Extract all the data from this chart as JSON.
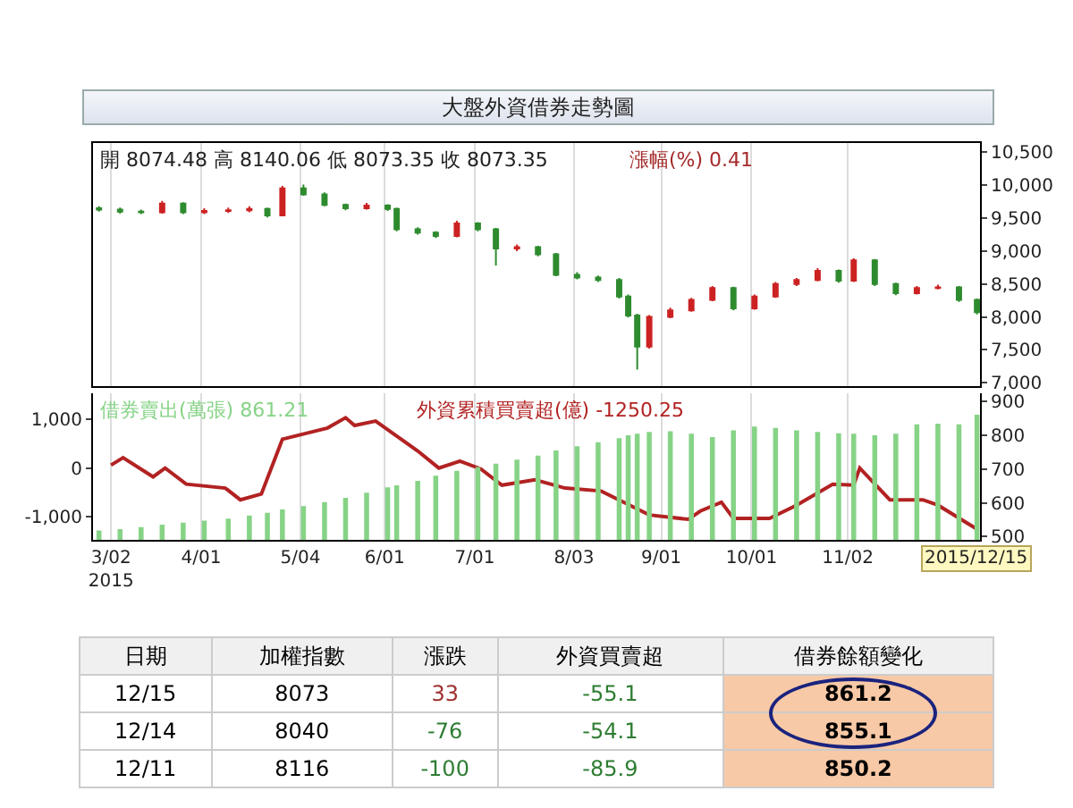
{
  "chart_data": [
    {
      "type": "candlestick",
      "title": "大盤外資借券走勢圖",
      "annotations": [
        "開 8074.48 高 8140.06 低 8073.35 收 8073.35",
        "漲幅(%) 0.41"
      ],
      "x": [
        "2015-02-26",
        "2015-03-05",
        "2015-03-12",
        "2015-03-19",
        "2015-03-26",
        "2015-04-02",
        "2015-04-10",
        "2015-04-17",
        "2015-04-23",
        "2015-04-28",
        "2015-05-05",
        "2015-05-12",
        "2015-05-19",
        "2015-05-26",
        "2015-06-02",
        "2015-06-05",
        "2015-06-12",
        "2015-06-18",
        "2015-06-25",
        "2015-07-02",
        "2015-07-08",
        "2015-07-15",
        "2015-07-22",
        "2015-07-28",
        "2015-08-04",
        "2015-08-11",
        "2015-08-18",
        "2015-08-21",
        "2015-08-24",
        "2015-08-28",
        "2015-09-04",
        "2015-09-11",
        "2015-09-18",
        "2015-09-25",
        "2015-10-02",
        "2015-10-09",
        "2015-10-16",
        "2015-10-23",
        "2015-10-30",
        "2015-11-04",
        "2015-11-11",
        "2015-11-18",
        "2015-11-25",
        "2015-12-02",
        "2015-12-09",
        "2015-12-15"
      ],
      "ohlc": [
        [
          9650,
          9680,
          9600,
          9630
        ],
        [
          9630,
          9660,
          9570,
          9600
        ],
        [
          9600,
          9630,
          9560,
          9590
        ],
        [
          9590,
          9760,
          9570,
          9720
        ],
        [
          9720,
          9740,
          9560,
          9590
        ],
        [
          9590,
          9650,
          9560,
          9610
        ],
        [
          9610,
          9660,
          9580,
          9620
        ],
        [
          9620,
          9680,
          9590,
          9640
        ],
        [
          9640,
          9660,
          9510,
          9540
        ],
        [
          9540,
          9990,
          9530,
          9950
        ],
        [
          9950,
          10010,
          9840,
          9860
        ],
        [
          9860,
          9890,
          9680,
          9700
        ],
        [
          9700,
          9720,
          9620,
          9650
        ],
        [
          9650,
          9730,
          9630,
          9690
        ],
        [
          9690,
          9710,
          9610,
          9640
        ],
        [
          9640,
          9660,
          9300,
          9330
        ],
        [
          9330,
          9360,
          9250,
          9280
        ],
        [
          9280,
          9300,
          9200,
          9230
        ],
        [
          9230,
          9460,
          9210,
          9420
        ],
        [
          9420,
          9440,
          9300,
          9330
        ],
        [
          9330,
          9350,
          8780,
          9040
        ],
        [
          9040,
          9100,
          9000,
          9060
        ],
        [
          9060,
          9080,
          8920,
          8950
        ],
        [
          8950,
          8970,
          8620,
          8640
        ],
        [
          8640,
          8680,
          8570,
          8600
        ],
        [
          8600,
          8630,
          8530,
          8560
        ],
        [
          8560,
          8590,
          8280,
          8310
        ],
        [
          8310,
          8340,
          7990,
          8020
        ],
        [
          8020,
          8050,
          7200,
          7550
        ],
        [
          7550,
          8030,
          7520,
          8000
        ],
        [
          8000,
          8140,
          7980,
          8100
        ],
        [
          8100,
          8290,
          8080,
          8260
        ],
        [
          8260,
          8470,
          8240,
          8440
        ],
        [
          8440,
          8460,
          8100,
          8130
        ],
        [
          8130,
          8340,
          8110,
          8310
        ],
        [
          8310,
          8530,
          8290,
          8500
        ],
        [
          8500,
          8590,
          8470,
          8560
        ],
        [
          8560,
          8740,
          8540,
          8700
        ],
        [
          8700,
          8720,
          8520,
          8550
        ],
        [
          8550,
          8890,
          8530,
          8860
        ],
        [
          8860,
          8880,
          8470,
          8500
        ],
        [
          8500,
          8520,
          8330,
          8360
        ],
        [
          8360,
          8470,
          8340,
          8440
        ],
        [
          8440,
          8490,
          8420,
          8450
        ],
        [
          8450,
          8470,
          8230,
          8260
        ],
        [
          8260,
          8280,
          8040,
          8073
        ]
      ],
      "colors": [
        "#2e8b2e",
        "#2e8b2e",
        "#2e8b2e",
        "#cc2222",
        "#2e8b2e",
        "#cc2222",
        "#cc2222",
        "#cc2222",
        "#2e8b2e",
        "#cc2222",
        "#2e8b2e",
        "#2e8b2e",
        "#2e8b2e",
        "#cc2222",
        "#2e8b2e",
        "#2e8b2e",
        "#2e8b2e",
        "#2e8b2e",
        "#cc2222",
        "#2e8b2e",
        "#2e8b2e",
        "#cc2222",
        "#2e8b2e",
        "#2e8b2e",
        "#2e8b2e",
        "#2e8b2e",
        "#2e8b2e",
        "#2e8b2e",
        "#2e8b2e",
        "#cc2222",
        "#cc2222",
        "#cc2222",
        "#cc2222",
        "#2e8b2e",
        "#cc2222",
        "#cc2222",
        "#cc2222",
        "#cc2222",
        "#2e8b2e",
        "#cc2222",
        "#2e8b2e",
        "#2e8b2e",
        "#cc2222",
        "#cc2222",
        "#2e8b2e",
        "#2e8b2e"
      ],
      "xlim": [
        "2015-02-24",
        "2015-12-16"
      ],
      "xticks": [
        {
          "value": "2015-03-02",
          "label": null
        },
        {
          "value": "2015-04-01",
          "label": null
        },
        {
          "value": "2015-05-04",
          "label": null
        },
        {
          "value": "2015-06-01",
          "label": null
        },
        {
          "value": "2015-07-01",
          "label": null
        },
        {
          "value": "2015-08-03",
          "label": null
        },
        {
          "value": "2015-09-01",
          "label": null
        },
        {
          "value": "2015-10-01",
          "label": null
        },
        {
          "value": "2015-11-02",
          "label": null
        }
      ],
      "ylim": [
        6950,
        10640
      ],
      "yticks": [
        {
          "value": 7000,
          "label": "7,000"
        },
        {
          "value": 7500,
          "label": "7,500"
        },
        {
          "value": 8000,
          "label": "8,000"
        },
        {
          "value": 8500,
          "label": "8,500"
        },
        {
          "value": 9000,
          "label": "9,000"
        },
        {
          "value": 9500,
          "label": "9,500"
        },
        {
          "value": 10000,
          "label": "10,000"
        },
        {
          "value": 10500,
          "label": "10,500"
        }
      ],
      "grid": "x",
      "legend": false,
      "tick_labels": "y"
    },
    {
      "type": "bar",
      "x": [
        "2015-02-26",
        "2015-03-05",
        "2015-03-12",
        "2015-03-19",
        "2015-03-26",
        "2015-04-02",
        "2015-04-10",
        "2015-04-17",
        "2015-04-23",
        "2015-04-28",
        "2015-05-05",
        "2015-05-12",
        "2015-05-19",
        "2015-05-26",
        "2015-06-02",
        "2015-06-05",
        "2015-06-12",
        "2015-06-18",
        "2015-06-25",
        "2015-07-02",
        "2015-07-08",
        "2015-07-15",
        "2015-07-22",
        "2015-07-28",
        "2015-08-04",
        "2015-08-11",
        "2015-08-18",
        "2015-08-21",
        "2015-08-24",
        "2015-08-28",
        "2015-09-04",
        "2015-09-11",
        "2015-09-18",
        "2015-09-25",
        "2015-10-02",
        "2015-10-09",
        "2015-10-16",
        "2015-10-23",
        "2015-10-30",
        "2015-11-04",
        "2015-11-11",
        "2015-11-18",
        "2015-11-25",
        "2015-12-02",
        "2015-12-09",
        "2015-12-15"
      ],
      "series": [
        {
          "name": "借券賣出(萬張) 861.21",
          "type": "bar",
          "axis": "y2",
          "color": "#86d386",
          "values": [
            518,
            522,
            528,
            535,
            541,
            547,
            553,
            562,
            570,
            580,
            590,
            602,
            615,
            630,
            646,
            652,
            665,
            680,
            695,
            706,
            716,
            728,
            740,
            755,
            768,
            780,
            792,
            800,
            805,
            810,
            812,
            805,
            795,
            815,
            826,
            822,
            815,
            810,
            806,
            805,
            800,
            805,
            833,
            835,
            833,
            861
          ]
        },
        {
          "name": "外資累積買賣超(億) -1250.25",
          "type": "line",
          "color": "#b22222",
          "x": [
            "2015-03-02",
            "2015-03-06",
            "2015-03-16",
            "2015-03-20",
            "2015-03-27",
            "2015-04-09",
            "2015-04-14",
            "2015-04-21",
            "2015-04-28",
            "2015-05-13",
            "2015-05-19",
            "2015-05-22",
            "2015-05-29",
            "2015-06-12",
            "2015-06-19",
            "2015-06-26",
            "2015-07-03",
            "2015-07-10",
            "2015-07-21",
            "2015-07-31",
            "2015-08-12",
            "2015-08-28",
            "2015-09-10",
            "2015-09-14",
            "2015-09-21",
            "2015-09-25",
            "2015-10-07",
            "2015-10-16",
            "2015-10-28",
            "2015-11-04",
            "2015-11-06",
            "2015-11-16",
            "2015-11-27",
            "2015-12-02",
            "2015-12-15"
          ],
          "values": [
            60,
            210,
            -180,
            0,
            -330,
            -410,
            -650,
            -530,
            590,
            820,
            1030,
            870,
            960,
            350,
            0,
            140,
            -20,
            -350,
            -240,
            -410,
            -470,
            -960,
            -1050,
            -880,
            -700,
            -1030,
            -1030,
            -760,
            -330,
            -350,
            0,
            -650,
            -650,
            -760,
            -1250
          ]
        }
      ],
      "annotations": [
        {
          "text": "2015/12/15",
          "x": "2015-12-15"
        }
      ],
      "xlim": [
        "2015-02-24",
        "2015-12-16"
      ],
      "xticks": [
        {
          "value": "2015-03-02",
          "label": "3/02\n2015"
        },
        {
          "value": "2015-04-01",
          "label": "4/01"
        },
        {
          "value": "2015-05-04",
          "label": "5/04"
        },
        {
          "value": "2015-06-01",
          "label": "6/01"
        },
        {
          "value": "2015-07-01",
          "label": "7/01"
        },
        {
          "value": "2015-08-03",
          "label": "8/03"
        },
        {
          "value": "2015-09-01",
          "label": "9/01"
        },
        {
          "value": "2015-10-01",
          "label": "10/01"
        },
        {
          "value": "2015-11-02",
          "label": "11/02"
        }
      ],
      "ylim": [
        -1470,
        1530
      ],
      "yticks": [
        {
          "value": -1000,
          "label": "-1,000"
        },
        0,
        {
          "value": 1000,
          "label": "1,000"
        }
      ],
      "y2lim": [
        490,
        925
      ],
      "y2ticks": [
        500,
        600,
        700,
        800,
        900
      ],
      "grid": "x",
      "legend": false
    },
    {
      "type": "other",
      "categories": [
        "日期",
        "加權指數",
        "漲跌",
        "外資買賣超",
        "借券餘額變化"
      ],
      "cell_labels": [
        [
          "12/15",
          "8073",
          "33",
          "-55.1",
          "861.2"
        ],
        [
          "12/14",
          "8040",
          "-76",
          "-54.1",
          "855.1"
        ],
        [
          "12/11",
          "8116",
          "-100",
          "-85.9",
          "850.2"
        ]
      ]
    }
  ]
}
